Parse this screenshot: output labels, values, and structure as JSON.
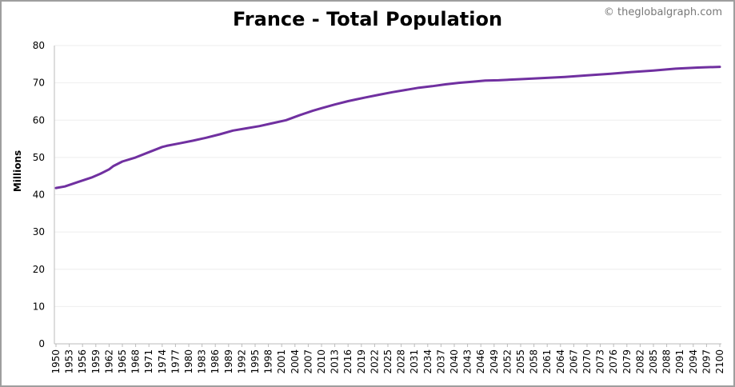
{
  "credit": "© theglobalgraph.com",
  "chart_data": {
    "type": "line",
    "title": "France - Total Population",
    "xlabel": "",
    "ylabel": "Millions",
    "ylim": [
      0,
      80
    ],
    "yticks": [
      0,
      10,
      20,
      30,
      40,
      50,
      60,
      70,
      80
    ],
    "xlim": [
      1950,
      2100
    ],
    "xtick_start": 1950,
    "xtick_step": 3,
    "xtick_end": 2100,
    "grid": true,
    "legend": "none",
    "series_color": "#7030a0",
    "series": [
      {
        "x": [
          1950,
          1952,
          1955,
          1958,
          1960,
          1962,
          1963,
          1965,
          1968,
          1971,
          1974,
          1975,
          1978,
          1981,
          1984,
          1987,
          1990,
          1993,
          1996,
          1999,
          2002,
          2005,
          2008,
          2010,
          2013,
          2016,
          2018,
          2020,
          2023,
          2026,
          2029,
          2032,
          2035,
          2038,
          2041,
          2044,
          2047,
          2050,
          2055,
          2060,
          2065,
          2070,
          2075,
          2080,
          2085,
          2090,
          2095,
          2100
        ],
        "values": [
          41.8,
          42.2,
          43.4,
          44.6,
          45.6,
          46.8,
          47.7,
          48.9,
          50.0,
          51.4,
          52.8,
          53.1,
          53.8,
          54.5,
          55.3,
          56.2,
          57.2,
          57.8,
          58.4,
          59.2,
          60.0,
          61.3,
          62.5,
          63.2,
          64.2,
          65.1,
          65.6,
          66.1,
          66.8,
          67.5,
          68.1,
          68.7,
          69.1,
          69.6,
          70.0,
          70.3,
          70.6,
          70.7,
          71.0,
          71.3,
          71.6,
          72.0,
          72.4,
          72.9,
          73.3,
          73.8,
          74.1,
          74.3
        ]
      }
    ]
  }
}
